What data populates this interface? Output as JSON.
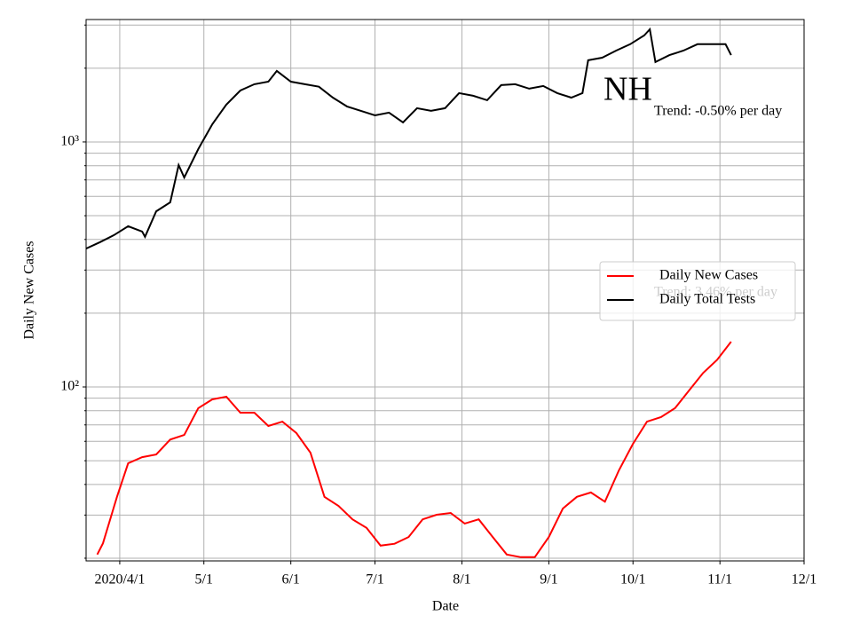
{
  "chart_data": {
    "type": "line",
    "title": "NH",
    "xlabel": "Date",
    "ylabel": "Daily New Cases",
    "log_y": true,
    "grid": true,
    "legend": "center right",
    "annotations": [
      "Trend: -0.50% per day",
      "Trend: 3.46% per day"
    ],
    "xlim": [
      "2020-03-20",
      "2020-12-01"
    ],
    "xticks": [
      {
        "value": "2020-04-01",
        "label": "2020/4/1"
      },
      {
        "value": "2020-05-01",
        "label": "5/1"
      },
      {
        "value": "2020-06-01",
        "label": "6/1"
      },
      {
        "value": "2020-07-01",
        "label": "7/1"
      },
      {
        "value": "2020-08-01",
        "label": "8/1"
      },
      {
        "value": "2020-09-01",
        "label": "9/1"
      },
      {
        "value": "2020-10-01",
        "label": "10/1"
      },
      {
        "value": "2020-11-01",
        "label": "11/1"
      },
      {
        "value": "2020-12-01",
        "label": "12/1"
      }
    ],
    "ylim": [
      19.5,
      3160
    ],
    "yticks": [
      {
        "value": 100,
        "label": "10²"
      },
      {
        "value": 1000,
        "label": "10³"
      }
    ],
    "yminor": [
      20,
      30,
      40,
      50,
      60,
      70,
      80,
      90,
      200,
      300,
      400,
      500,
      600,
      700,
      800,
      900,
      2000,
      3000
    ],
    "series": [
      {
        "name": "Daily New Cases",
        "color": "#ff0000",
        "x": [
          "2020-03-24",
          "2020-03-26",
          "2020-03-31",
          "2020-04-04",
          "2020-04-09",
          "2020-04-14",
          "2020-04-19",
          "2020-04-24",
          "2020-04-29",
          "2020-05-04",
          "2020-05-09",
          "2020-05-14",
          "2020-05-19",
          "2020-05-24",
          "2020-05-29",
          "2020-06-03",
          "2020-06-08",
          "2020-06-13",
          "2020-06-18",
          "2020-06-23",
          "2020-06-28",
          "2020-07-03",
          "2020-07-08",
          "2020-07-13",
          "2020-07-18",
          "2020-07-23",
          "2020-07-28",
          "2020-08-02",
          "2020-08-07",
          "2020-08-12",
          "2020-08-17",
          "2020-08-22",
          "2020-08-27",
          "2020-09-01",
          "2020-09-06",
          "2020-09-11",
          "2020-09-16",
          "2020-09-21",
          "2020-09-26",
          "2020-10-01",
          "2020-10-06",
          "2020-10-11",
          "2020-10-16",
          "2020-10-21",
          "2020-10-26",
          "2020-10-31",
          "2020-11-05"
        ],
        "values": [
          20.7,
          23,
          35.6,
          48.8,
          51.7,
          53,
          61,
          63.7,
          81.9,
          89,
          91.2,
          78.5,
          78.5,
          69.3,
          72.2,
          64.8,
          53.9,
          35.6,
          32.7,
          28.8,
          26.6,
          22.5,
          22.9,
          24.4,
          28.8,
          30.1,
          30.6,
          27.7,
          28.8,
          24.4,
          20.7,
          20.2,
          20.2,
          24.4,
          31.9,
          35.6,
          37.1,
          34,
          45.7,
          58.6,
          72.2,
          75.3,
          81.9,
          96.7,
          114,
          129,
          153
        ]
      },
      {
        "name": "Daily Total Tests",
        "color": "#000000",
        "x": [
          "2020-03-20",
          "2020-03-25",
          "2020-03-30",
          "2020-04-04",
          "2020-04-09",
          "2020-04-10",
          "2020-04-14",
          "2020-04-19",
          "2020-04-22",
          "2020-04-24",
          "2020-04-29",
          "2020-05-04",
          "2020-05-09",
          "2020-05-14",
          "2020-05-19",
          "2020-05-24",
          "2020-05-27",
          "2020-06-01",
          "2020-06-06",
          "2020-06-11",
          "2020-06-16",
          "2020-06-21",
          "2020-06-26",
          "2020-07-01",
          "2020-07-06",
          "2020-07-11",
          "2020-07-16",
          "2020-07-21",
          "2020-07-26",
          "2020-07-31",
          "2020-08-05",
          "2020-08-10",
          "2020-08-15",
          "2020-08-20",
          "2020-08-25",
          "2020-08-30",
          "2020-09-04",
          "2020-09-09",
          "2020-09-13",
          "2020-09-15",
          "2020-09-20",
          "2020-09-25",
          "2020-09-30",
          "2020-10-05",
          "2020-10-07",
          "2020-10-09",
          "2020-10-14",
          "2020-10-19",
          "2020-10-24",
          "2020-10-29",
          "2020-11-03",
          "2020-11-05"
        ],
        "values": [
          367,
          390,
          417,
          453,
          431,
          410,
          521,
          567,
          805,
          716,
          935,
          1181,
          1420,
          1622,
          1720,
          1763,
          1950,
          1763,
          1720,
          1680,
          1517,
          1396,
          1339,
          1284,
          1317,
          1202,
          1374,
          1339,
          1374,
          1583,
          1543,
          1480,
          1706,
          1720,
          1650,
          1692,
          1583,
          1517,
          1583,
          2154,
          2208,
          2360,
          2505,
          2722,
          2884,
          2119,
          2262,
          2360,
          2505,
          2505,
          2505,
          2262
        ]
      }
    ]
  }
}
